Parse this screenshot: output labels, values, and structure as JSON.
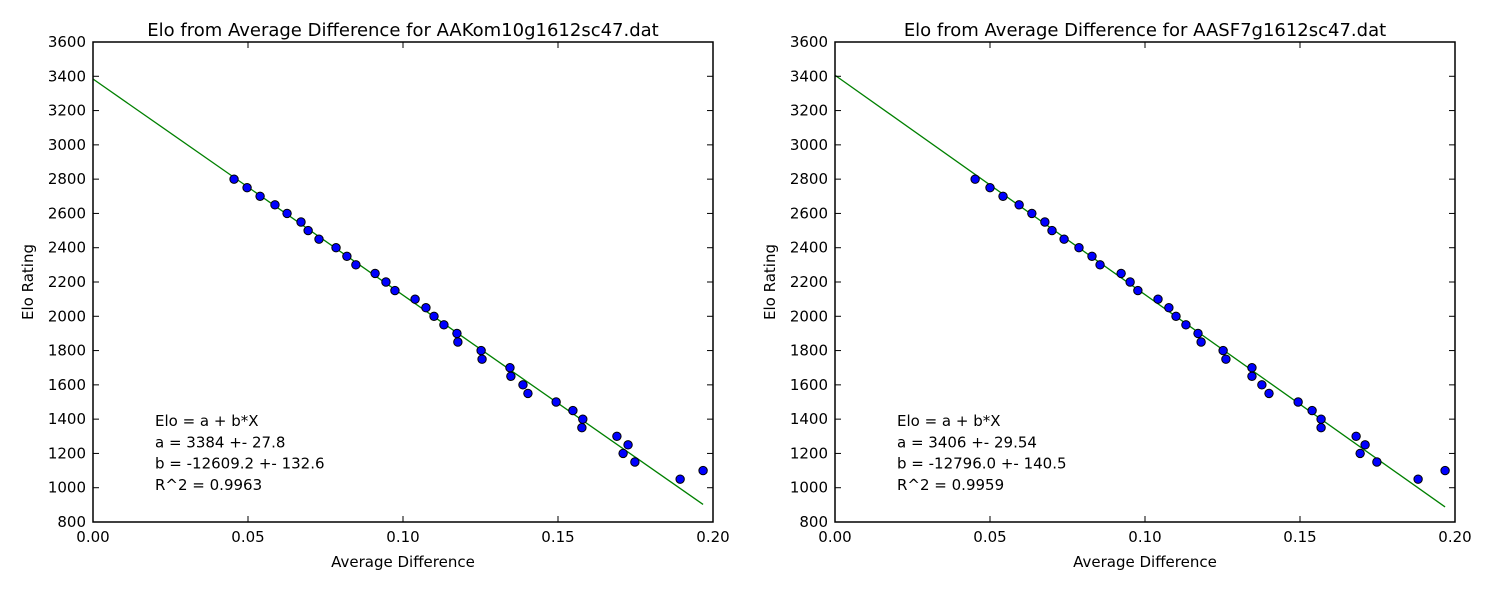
{
  "chart_data": [
    {
      "type": "scatter",
      "title": "Elo from Average Difference for AAKom10g1612sc47.dat",
      "xlabel": "Average Difference",
      "ylabel": "Elo Rating",
      "xlim": [
        0.0,
        0.2
      ],
      "ylim": [
        800,
        3600
      ],
      "x_ticks": [
        "0.00",
        "0.05",
        "0.10",
        "0.15",
        "0.20"
      ],
      "y_ticks": [
        "800",
        "1000",
        "1200",
        "1400",
        "1600",
        "1800",
        "2000",
        "2200",
        "2400",
        "2600",
        "2800",
        "3000",
        "3200",
        "3400",
        "3600"
      ],
      "grid": false,
      "series": [
        {
          "name": "data",
          "kind": "scatter",
          "color": "#0000ff",
          "x": [
            0.0455,
            0.0497,
            0.0539,
            0.0587,
            0.0626,
            0.0671,
            0.0694,
            0.0729,
            0.0784,
            0.0819,
            0.0848,
            0.091,
            0.0945,
            0.0974,
            0.1039,
            0.1074,
            0.11,
            0.1132,
            0.1174,
            0.1177,
            0.1252,
            0.1255,
            0.1345,
            0.1348,
            0.1387,
            0.1403,
            0.1494,
            0.1548,
            0.158,
            0.1577,
            0.169,
            0.1726,
            0.171,
            0.1748,
            0.1894,
            0.1968
          ],
          "y": [
            2800,
            2750,
            2700,
            2650,
            2600,
            2550,
            2500,
            2450,
            2400,
            2350,
            2300,
            2250,
            2200,
            2150,
            2100,
            2050,
            2000,
            1950,
            1900,
            1850,
            1800,
            1750,
            1700,
            1650,
            1600,
            1550,
            1500,
            1450,
            1400,
            1350,
            1300,
            1250,
            1200,
            1150,
            1050,
            1100
          ]
        },
        {
          "name": "fit",
          "kind": "line",
          "color": "#008000",
          "a": 3384,
          "b": -12609.2,
          "x_range": [
            0.0,
            0.1968
          ]
        }
      ],
      "annotation": {
        "lines": [
          "Elo = a + b*X",
          "a = 3384 +- 27.8",
          "b = -12609.2 +- 132.6",
          "R^2 = 0.9963"
        ],
        "position": "bottom-left"
      }
    },
    {
      "type": "scatter",
      "title": "Elo from Average Difference for AASF7g1612sc47.dat",
      "xlabel": "Average Difference",
      "ylabel": "Elo Rating",
      "xlim": [
        0.0,
        0.2
      ],
      "ylim": [
        800,
        3600
      ],
      "x_ticks": [
        "0.00",
        "0.05",
        "0.10",
        "0.15",
        "0.20"
      ],
      "y_ticks": [
        "800",
        "1000",
        "1200",
        "1400",
        "1600",
        "1800",
        "2000",
        "2200",
        "2400",
        "2600",
        "2800",
        "3000",
        "3200",
        "3400",
        "3600"
      ],
      "grid": false,
      "series": [
        {
          "name": "data",
          "kind": "scatter",
          "color": "#0000ff",
          "x": [
            0.0452,
            0.05,
            0.0542,
            0.0594,
            0.0635,
            0.0677,
            0.07,
            0.0739,
            0.0787,
            0.0829,
            0.0855,
            0.0923,
            0.0952,
            0.0977,
            0.1042,
            0.1077,
            0.11,
            0.1132,
            0.1171,
            0.1181,
            0.1252,
            0.1261,
            0.1345,
            0.1345,
            0.1377,
            0.14,
            0.1494,
            0.1539,
            0.1568,
            0.1568,
            0.1681,
            0.171,
            0.1694,
            0.1748,
            0.1881,
            0.1968
          ],
          "y": [
            2800,
            2750,
            2700,
            2650,
            2600,
            2550,
            2500,
            2450,
            2400,
            2350,
            2300,
            2250,
            2200,
            2150,
            2100,
            2050,
            2000,
            1950,
            1900,
            1850,
            1800,
            1750,
            1700,
            1650,
            1600,
            1550,
            1500,
            1450,
            1400,
            1350,
            1300,
            1250,
            1200,
            1150,
            1050,
            1100
          ]
        },
        {
          "name": "fit",
          "kind": "line",
          "color": "#008000",
          "a": 3406,
          "b": -12796.0,
          "x_range": [
            0.0,
            0.1968
          ]
        }
      ],
      "annotation": {
        "lines": [
          "Elo = a + b*X",
          "a = 3406 +- 29.54",
          "b = -12796.0 +- 140.5",
          "R^2 = 0.9959"
        ],
        "position": "bottom-left"
      }
    }
  ]
}
